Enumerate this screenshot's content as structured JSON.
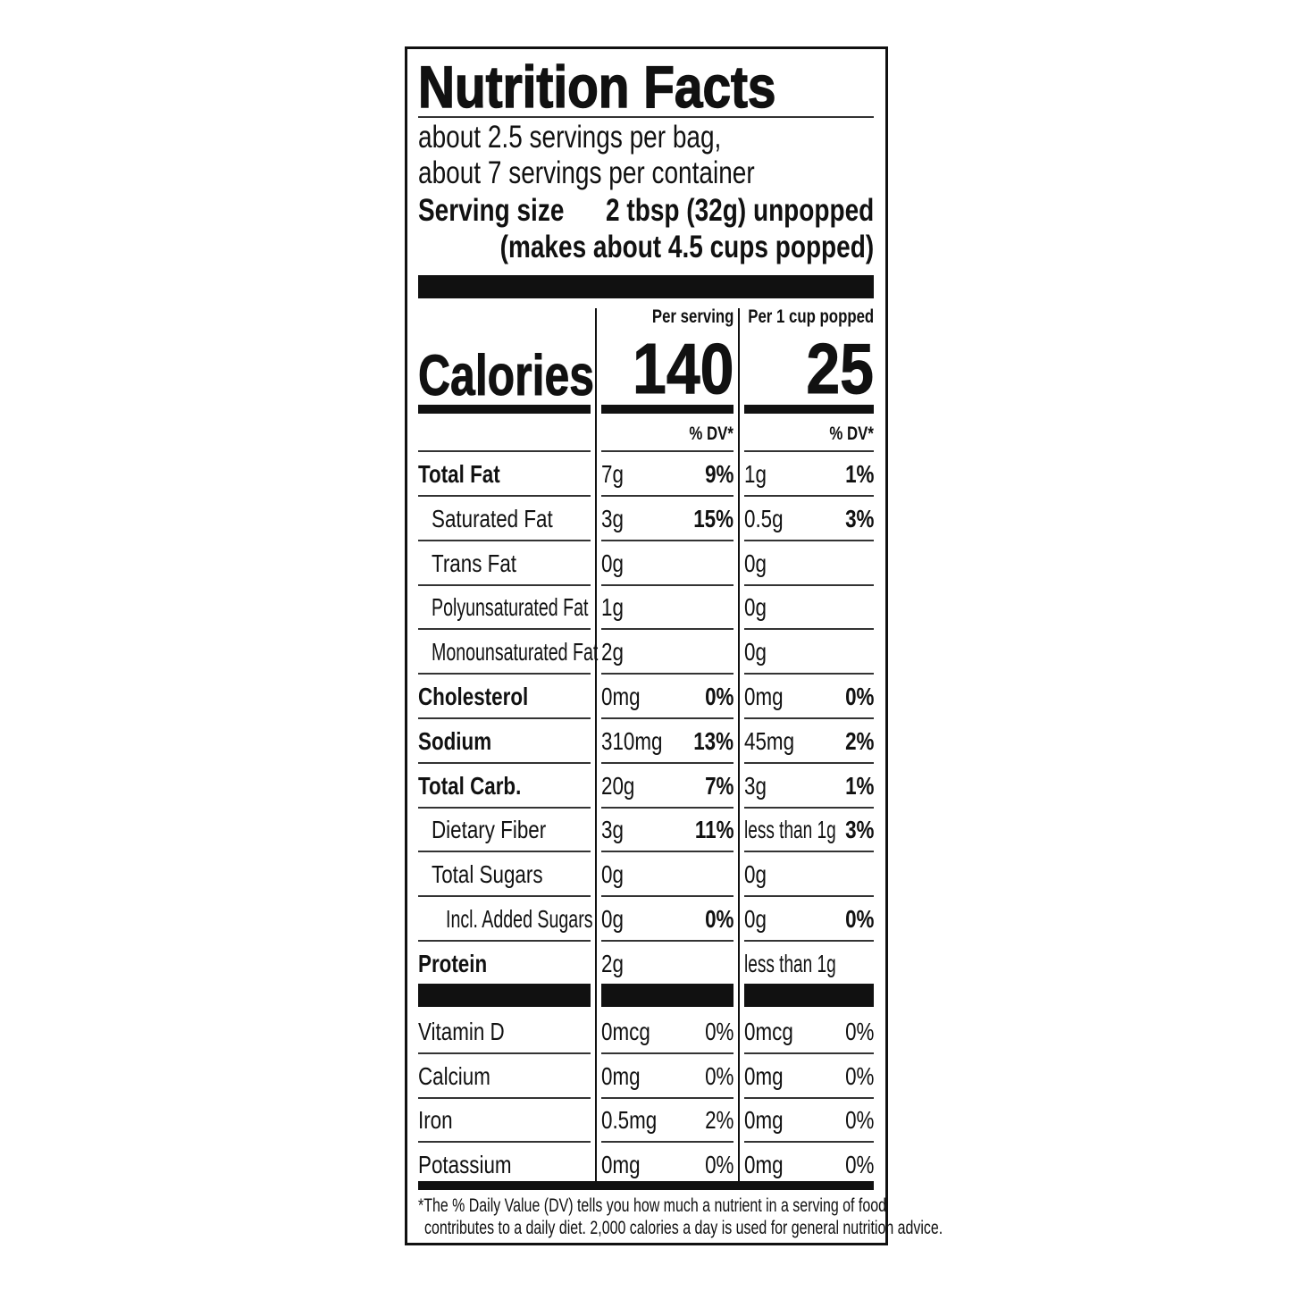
{
  "header": {
    "title": "Nutrition Facts",
    "servings_bag": "about 2.5 servings per bag,",
    "servings_container": "about 7 servings per container",
    "serving_size_label": "Serving size",
    "serving_size_value": "2 tbsp (32g) unpopped",
    "serving_size_note": "(makes about 4.5 cups popped)"
  },
  "columns": {
    "col1_header": "Per serving",
    "col2_header": "Per 1 cup popped",
    "dv_header": "% DV*"
  },
  "calories": {
    "label": "Calories",
    "per_serving": "140",
    "per_cup": "25"
  },
  "nutrients": [
    {
      "label": "Total Fat",
      "bold": true,
      "indent": 0,
      "s_amt": "7g",
      "s_dv": "9%",
      "c_amt": "1g",
      "c_dv": "1%"
    },
    {
      "label": "Saturated Fat",
      "bold": false,
      "indent": 1,
      "s_amt": "3g",
      "s_dv": "15%",
      "c_amt": "0.5g",
      "c_dv": "3%"
    },
    {
      "label": "Trans Fat",
      "bold": false,
      "indent": 1,
      "s_amt": "0g",
      "s_dv": "",
      "c_amt": "0g",
      "c_dv": ""
    },
    {
      "label": "Polyunsaturated Fat",
      "bold": false,
      "indent": 1,
      "s_amt": "1g",
      "s_dv": "",
      "c_amt": "0g",
      "c_dv": ""
    },
    {
      "label": "Monounsaturated Fat",
      "bold": false,
      "indent": 1,
      "s_amt": "2g",
      "s_dv": "",
      "c_amt": "0g",
      "c_dv": ""
    },
    {
      "label": "Cholesterol",
      "bold": true,
      "indent": 0,
      "s_amt": "0mg",
      "s_dv": "0%",
      "c_amt": "0mg",
      "c_dv": "0%"
    },
    {
      "label": "Sodium",
      "bold": true,
      "indent": 0,
      "s_amt": "310mg",
      "s_dv": "13%",
      "c_amt": "45mg",
      "c_dv": "2%"
    },
    {
      "label": "Total Carb.",
      "bold": true,
      "indent": 0,
      "s_amt": "20g",
      "s_dv": "7%",
      "c_amt": "3g",
      "c_dv": "1%"
    },
    {
      "label": "Dietary Fiber",
      "bold": false,
      "indent": 1,
      "s_amt": "3g",
      "s_dv": "11%",
      "c_amt": "less than 1g",
      "c_dv": "3%"
    },
    {
      "label": "Total Sugars",
      "bold": false,
      "indent": 1,
      "s_amt": "0g",
      "s_dv": "",
      "c_amt": "0g",
      "c_dv": ""
    },
    {
      "label": "Incl. Added Sugars",
      "bold": false,
      "indent": 2,
      "s_amt": "0g",
      "s_dv": "0%",
      "c_amt": "0g",
      "c_dv": "0%"
    },
    {
      "label": "Protein",
      "bold": true,
      "indent": 0,
      "s_amt": "2g",
      "s_dv": "",
      "c_amt": "less than 1g",
      "c_dv": ""
    }
  ],
  "vitamins": [
    {
      "label": "Vitamin D",
      "s_amt": "0mcg",
      "s_dv": "0%",
      "c_amt": "0mcg",
      "c_dv": "0%"
    },
    {
      "label": "Calcium",
      "s_amt": "0mg",
      "s_dv": "0%",
      "c_amt": "0mg",
      "c_dv": "0%"
    },
    {
      "label": "Iron",
      "s_amt": "0.5mg",
      "s_dv": "2%",
      "c_amt": "0mg",
      "c_dv": "0%"
    },
    {
      "label": "Potassium",
      "s_amt": "0mg",
      "s_dv": "0%",
      "c_amt": "0mg",
      "c_dv": "0%"
    }
  ],
  "footnote": {
    "line1": "*The % Daily Value (DV) tells you how much a nutrient in a serving of food",
    "line2": "contributes to a daily diet. 2,000 calories a day is used for general nutrition advice."
  }
}
